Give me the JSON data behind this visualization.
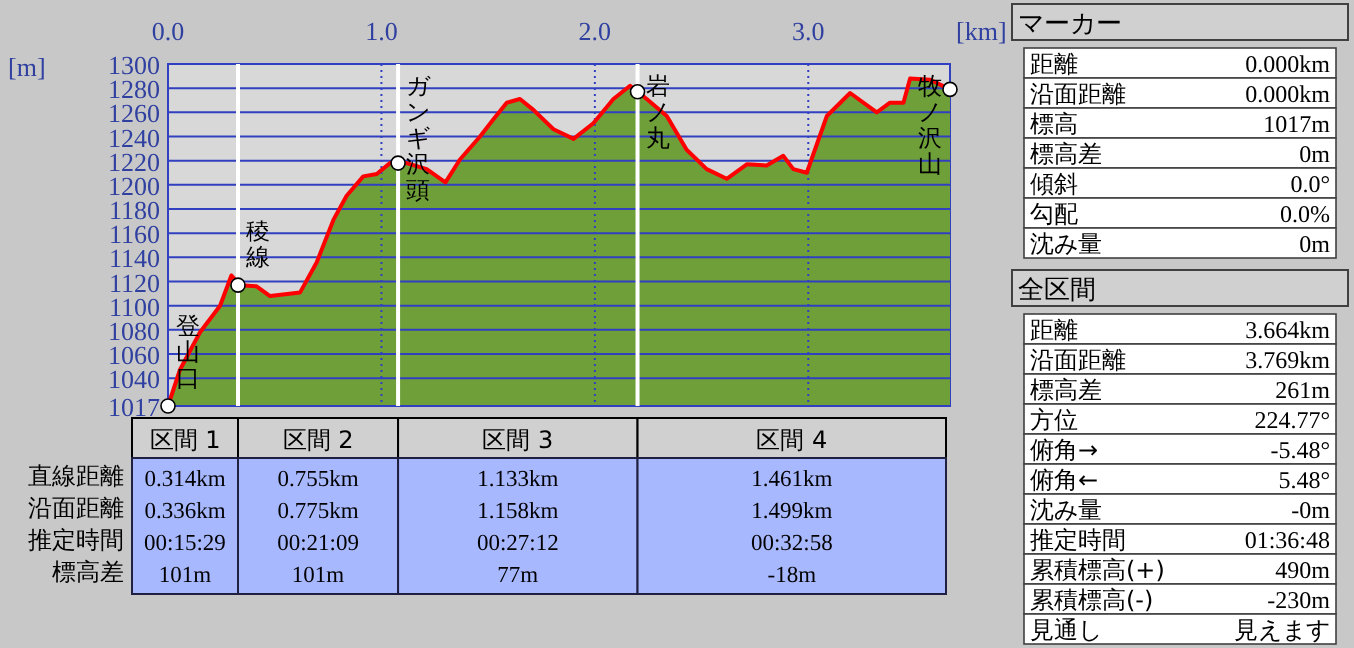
{
  "chart_data": [
    {
      "type": "area",
      "xlabel": "[km]",
      "ylabel": "[m]",
      "x": [
        0,
        0.056,
        0.15,
        0.244,
        0.297,
        0.337,
        0.415,
        0.478,
        0.619,
        0.697,
        0.775,
        0.837,
        0.915,
        0.978,
        1.04,
        1.118,
        1.212,
        1.3,
        1.368,
        1.462,
        1.524,
        1.587,
        1.649,
        1.712,
        1.806,
        1.9,
        1.993,
        2.087,
        2.165,
        2.243,
        2.337,
        2.43,
        2.524,
        2.618,
        2.712,
        2.805,
        2.883,
        2.93,
        2.993,
        3.087,
        3.196,
        3.321,
        3.383,
        3.446,
        3.477,
        3.571,
        3.664
      ],
      "series": [
        {
          "color": "#6f9f38",
          "values": [
            1017,
            1047,
            1078,
            1100,
            1125,
            1117,
            1116,
            1108,
            1111,
            1136,
            1171,
            1191,
            1207,
            1209,
            1218,
            1218,
            1213,
            1202,
            1221,
            1240,
            1254,
            1268,
            1271,
            1262,
            1246,
            1238,
            1251,
            1271,
            1282,
            1271,
            1257,
            1229,
            1213,
            1205,
            1217,
            1216,
            1224,
            1213,
            1210,
            1257,
            1276,
            1260,
            1268,
            1268,
            1288,
            1287,
            1279
          ]
        }
      ],
      "xlim": [
        0,
        3.664
      ],
      "xticks": [
        {
          "value": 0,
          "label": "0.0"
        },
        {
          "value": 1,
          "label": "1.0"
        },
        {
          "value": 2,
          "label": "2.0"
        },
        {
          "value": 3,
          "label": "3.0"
        }
      ],
      "ylim": [
        1017,
        1300
      ],
      "yticks": [
        1017,
        1040,
        1060,
        1080,
        1100,
        1120,
        1140,
        1160,
        1180,
        1200,
        1220,
        1240,
        1260,
        1280,
        1300
      ],
      "grid": true,
      "ref_lines": [
        {
          "axis": "x",
          "value": 0.328,
          "color": "#ffffff"
        },
        {
          "axis": "x",
          "value": 1.078,
          "color": "#ffffff"
        },
        {
          "axis": "x",
          "value": 2.2,
          "color": "#ffffff"
        }
      ],
      "annotations": [
        {
          "text": "登山口",
          "x": 0,
          "y": 1017
        },
        {
          "text": "稜線",
          "x": 0.328,
          "y": 1117
        },
        {
          "text": "ガンギ沢頭",
          "x": 1.078,
          "y": 1218
        },
        {
          "text": "岩ノ丸",
          "x": 2.2,
          "y": 1277
        },
        {
          "text": "牧ノ沢山",
          "x": 3.664,
          "y": 1279
        }
      ]
    },
    {
      "type": "other",
      "categories": [
        "区間 1",
        "区間 2",
        "区間 3",
        "区間 4"
      ],
      "y_categories": [
        "直線距離",
        "沿面距離",
        "推定時間",
        "標高差"
      ],
      "cell_labels": [
        [
          "0.314km",
          "0.755km",
          "1.133km",
          "1.461km"
        ],
        [
          "0.336km",
          "0.775km",
          "1.158km",
          "1.499km"
        ],
        [
          "00:15:29",
          "00:21:09",
          "00:27:12",
          "00:32:58"
        ],
        [
          "101m",
          "101m",
          "77m",
          "-18m"
        ]
      ]
    },
    {
      "type": "other",
      "title": "マーカー",
      "y_categories": [
        "距離",
        "沿面距離",
        "標高",
        "標高差",
        "傾斜",
        "勾配",
        "沈み量"
      ],
      "cell_labels": [
        [
          "0.000km"
        ],
        [
          "0.000km"
        ],
        [
          "1017m"
        ],
        [
          "0m"
        ],
        [
          "0.0°"
        ],
        [
          "0.0%"
        ],
        [
          "0m"
        ]
      ]
    },
    {
      "type": "other",
      "title": "全区間",
      "y_categories": [
        "距離",
        "沿面距離",
        "標高差",
        "方位",
        "俯角→",
        "俯角←",
        "沈み量",
        "推定時間",
        "累積標高(+)",
        "累積標高(-)",
        "見通し"
      ],
      "cell_labels": [
        [
          "3.664km"
        ],
        [
          "3.769km"
        ],
        [
          "261m"
        ],
        [
          "224.77°"
        ],
        [
          "-5.48°"
        ],
        [
          "5.48°"
        ],
        [
          "-0m"
        ],
        [
          "01:36:48"
        ],
        [
          "490m"
        ],
        [
          "-230m"
        ],
        [
          "見えます"
        ]
      ]
    }
  ]
}
